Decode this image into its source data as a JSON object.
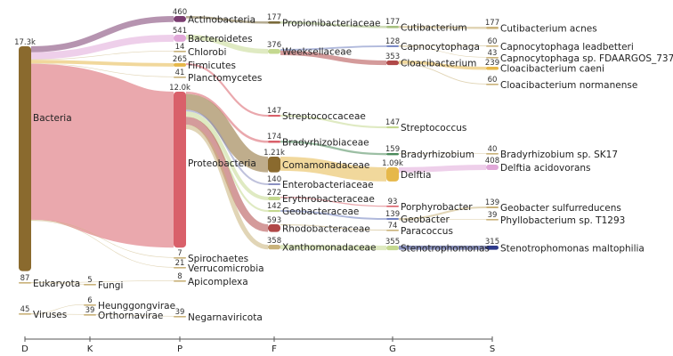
{
  "chart_data": {
    "type": "sankey",
    "title": "",
    "ranks": [
      "D",
      "K",
      "P",
      "F",
      "G",
      "S"
    ],
    "nodes": [
      {
        "id": "bacteria",
        "label": "Bacteria",
        "rank": "D",
        "count": 17300,
        "count_label": "17.3k",
        "color": "#8a6a2e"
      },
      {
        "id": "eukaryota",
        "label": "Eukaryota",
        "rank": "D",
        "count": 87,
        "count_label": "87",
        "color": "#c9b27a"
      },
      {
        "id": "viruses",
        "label": "Viruses",
        "rank": "D",
        "count": 45,
        "count_label": "45",
        "color": "#c9b27a"
      },
      {
        "id": "fungi",
        "label": "Fungi",
        "rank": "K",
        "count": 5,
        "count_label": "5",
        "color": "#c9b27a"
      },
      {
        "id": "heunggongvirae",
        "label": "Heunggongvirae",
        "rank": "K",
        "count": 6,
        "count_label": "6",
        "color": "#c9b27a"
      },
      {
        "id": "orthornavirae",
        "label": "Orthornavirae",
        "rank": "K",
        "count": 39,
        "count_label": "39",
        "color": "#c9b27a"
      },
      {
        "id": "actinobacteria",
        "label": "Actinobacteria",
        "rank": "P",
        "count": 460,
        "count_label": "460",
        "color": "#7a3d70"
      },
      {
        "id": "bacteroidetes",
        "label": "Bacteroidetes",
        "rank": "P",
        "count": 541,
        "count_label": "541",
        "color": "#e0a8d8"
      },
      {
        "id": "chlorobi",
        "label": "Chlorobi",
        "rank": "P",
        "count": 14,
        "count_label": "14",
        "color": "#c9b27a"
      },
      {
        "id": "firmicutes",
        "label": "Firmicutes",
        "rank": "P",
        "count": 265,
        "count_label": "265",
        "color": "#e6b84a"
      },
      {
        "id": "planctomycetes",
        "label": "Planctomycetes",
        "rank": "P",
        "count": 41,
        "count_label": "41",
        "color": "#c9b27a"
      },
      {
        "id": "proteobacteria",
        "label": "Proteobacteria",
        "rank": "P",
        "count": 12000,
        "count_label": "12.0k",
        "color": "#d9606a"
      },
      {
        "id": "spirochaetes",
        "label": "Spirochaetes",
        "rank": "P",
        "count": 7,
        "count_label": "7",
        "color": "#c9b27a"
      },
      {
        "id": "verrucomicrobia",
        "label": "Verrucomicrobia",
        "rank": "P",
        "count": 21,
        "count_label": "21",
        "color": "#c9b27a"
      },
      {
        "id": "apicomplexa",
        "label": "Apicomplexa",
        "rank": "P",
        "count": 8,
        "count_label": "8",
        "color": "#c9b27a"
      },
      {
        "id": "negarnaviricota",
        "label": "Negarnaviricota",
        "rank": "P",
        "count": 39,
        "count_label": "39",
        "color": "#c9b27a"
      },
      {
        "id": "propionibacteriaceae",
        "label": "Propionibacteriaceae",
        "rank": "F",
        "count": 177,
        "count_label": "177",
        "color": "#7a6a3a"
      },
      {
        "id": "weeksellaceae",
        "label": "Weeksellaceae",
        "rank": "F",
        "count": 376,
        "count_label": "376",
        "color": "#c4d890"
      },
      {
        "id": "streptococcaceae",
        "label": "Streptococcaceae",
        "rank": "F",
        "count": 147,
        "count_label": "147",
        "color": "#d9606a"
      },
      {
        "id": "bradyrhizobiaceae",
        "label": "Bradyrhizobiaceae",
        "rank": "F",
        "count": 174,
        "count_label": "174",
        "color": "#d9606a"
      },
      {
        "id": "comamonadaceae",
        "label": "Comamonadaceae",
        "rank": "F",
        "count": 1210,
        "count_label": "1.21k",
        "color": "#8a6a2e"
      },
      {
        "id": "enterobacteriaceae",
        "label": "Enterobacteriaceae",
        "rank": "F",
        "count": 140,
        "count_label": "140",
        "color": "#8a90c0"
      },
      {
        "id": "erythrobacteraceae",
        "label": "Erythrobacteraceae",
        "rank": "F",
        "count": 272,
        "count_label": "272",
        "color": "#c4d890"
      },
      {
        "id": "geobacteraceae",
        "label": "Geobacteraceae",
        "rank": "F",
        "count": 142,
        "count_label": "142",
        "color": "#c4d890"
      },
      {
        "id": "rhodobacteraceae",
        "label": "Rhodobacteraceae",
        "rank": "F",
        "count": 593,
        "count_label": "593",
        "color": "#b04848"
      },
      {
        "id": "xanthomonadaceae",
        "label": "Xanthomonadaceae",
        "rank": "F",
        "count": 358,
        "count_label": "358",
        "color": "#c9b27a"
      },
      {
        "id": "cutibacterium",
        "label": "Cutibacterium",
        "rank": "G",
        "count": 177,
        "count_label": "177",
        "color": "#a8c080"
      },
      {
        "id": "capnocytophaga",
        "label": "Capnocytophaga",
        "rank": "G",
        "count": 128,
        "count_label": "128",
        "color": "#7080c0"
      },
      {
        "id": "cloacibacterium",
        "label": "Cloacibacterium",
        "rank": "G",
        "count": 353,
        "count_label": "353",
        "color": "#b04848"
      },
      {
        "id": "streptococcus",
        "label": "Streptococcus",
        "rank": "G",
        "count": 147,
        "count_label": "147",
        "color": "#c4d890"
      },
      {
        "id": "bradyrhizobium",
        "label": "Bradyrhizobium",
        "rank": "G",
        "count": 159,
        "count_label": "159",
        "color": "#4a8a5a"
      },
      {
        "id": "delftia",
        "label": "Delftia",
        "rank": "G",
        "count": 1090,
        "count_label": "1.09k",
        "color": "#e6b84a"
      },
      {
        "id": "porphyrobacter",
        "label": "Porphyrobacter",
        "rank": "G",
        "count": 93,
        "count_label": "93",
        "color": "#d9606a"
      },
      {
        "id": "geobacter",
        "label": "Geobacter",
        "rank": "G",
        "count": 139,
        "count_label": "139",
        "color": "#7080c0"
      },
      {
        "id": "paracoccus",
        "label": "Paracoccus",
        "rank": "G",
        "count": 74,
        "count_label": "74",
        "color": "#c9b27a"
      },
      {
        "id": "stenotrophomonas",
        "label": "Stenotrophomonas",
        "rank": "G",
        "count": 355,
        "count_label": "355",
        "color": "#c4d890"
      },
      {
        "id": "cutibacterium_acnes",
        "label": "Cutibacterium acnes",
        "rank": "S",
        "count": 177,
        "count_label": "177",
        "color": "#c9b27a"
      },
      {
        "id": "capnocytophaga_leadbetteri",
        "label": "Capnocytophaga leadbetteri",
        "rank": "S",
        "count": 60,
        "count_label": "60",
        "color": "#c9b27a"
      },
      {
        "id": "capnocytophaga_fdaargos",
        "label": "Capnocytophaga sp. FDAARGOS_737",
        "rank": "S",
        "count": 43,
        "count_label": "43",
        "color": "#c9b27a"
      },
      {
        "id": "cloacibacterium_caeni",
        "label": "Cloacibacterium caeni",
        "rank": "S",
        "count": 239,
        "count_label": "239",
        "color": "#e6b84a"
      },
      {
        "id": "cloacibacterium_normanense",
        "label": "Cloacibacterium normanense",
        "rank": "S",
        "count": 60,
        "count_label": "60",
        "color": "#c9b27a"
      },
      {
        "id": "bradyrhizobium_sk17",
        "label": "Bradyrhizobium sp. SK17",
        "rank": "S",
        "count": 40,
        "count_label": "40",
        "color": "#c9b27a"
      },
      {
        "id": "delftia_acidovorans",
        "label": "Delftia acidovorans",
        "rank": "S",
        "count": 408,
        "count_label": "408",
        "color": "#e0a8d8"
      },
      {
        "id": "geobacter_sulfurreducens",
        "label": "Geobacter sulfurreducens",
        "rank": "S",
        "count": 139,
        "count_label": "139",
        "color": "#c9b27a"
      },
      {
        "id": "phyllobacterium_t1293",
        "label": "Phyllobacterium sp. T1293",
        "rank": "S",
        "count": 39,
        "count_label": "39",
        "color": "#c9b27a"
      },
      {
        "id": "stenotrophomonas_maltophilia",
        "label": "Stenotrophomonas maltophilia",
        "rank": "S",
        "count": 315,
        "count_label": "315",
        "color": "#2e3a8a"
      }
    ],
    "links": [
      {
        "source": "bacteria",
        "target": "actinobacteria",
        "value": 460
      },
      {
        "source": "bacteria",
        "target": "bacteroidetes",
        "value": 541
      },
      {
        "source": "bacteria",
        "target": "chlorobi",
        "value": 14
      },
      {
        "source": "bacteria",
        "target": "firmicutes",
        "value": 265
      },
      {
        "source": "bacteria",
        "target": "planctomycetes",
        "value": 41
      },
      {
        "source": "bacteria",
        "target": "proteobacteria",
        "value": 12000
      },
      {
        "source": "bacteria",
        "target": "spirochaetes",
        "value": 7
      },
      {
        "source": "bacteria",
        "target": "verrucomicrobia",
        "value": 21
      },
      {
        "source": "eukaryota",
        "target": "fungi",
        "value": 5
      },
      {
        "source": "eukaryota",
        "target": "apicomplexa",
        "value": 8
      },
      {
        "source": "viruses",
        "target": "heunggongvirae",
        "value": 6
      },
      {
        "source": "viruses",
        "target": "orthornavirae",
        "value": 39
      },
      {
        "source": "orthornavirae",
        "target": "negarnaviricota",
        "value": 39
      },
      {
        "source": "actinobacteria",
        "target": "propionibacteriaceae",
        "value": 177
      },
      {
        "source": "bacteroidetes",
        "target": "weeksellaceae",
        "value": 376
      },
      {
        "source": "firmicutes",
        "target": "streptococcaceae",
        "value": 147
      },
      {
        "source": "proteobacteria",
        "target": "bradyrhizobiaceae",
        "value": 174
      },
      {
        "source": "proteobacteria",
        "target": "comamonadaceae",
        "value": 1210
      },
      {
        "source": "proteobacteria",
        "target": "enterobacteriaceae",
        "value": 140
      },
      {
        "source": "proteobacteria",
        "target": "erythrobacteraceae",
        "value": 272
      },
      {
        "source": "proteobacteria",
        "target": "geobacteraceae",
        "value": 142
      },
      {
        "source": "proteobacteria",
        "target": "rhodobacteraceae",
        "value": 593
      },
      {
        "source": "proteobacteria",
        "target": "xanthomonadaceae",
        "value": 358
      },
      {
        "source": "propionibacteriaceae",
        "target": "cutibacterium",
        "value": 177
      },
      {
        "source": "weeksellaceae",
        "target": "capnocytophaga",
        "value": 128
      },
      {
        "source": "weeksellaceae",
        "target": "cloacibacterium",
        "value": 353
      },
      {
        "source": "streptococcaceae",
        "target": "streptococcus",
        "value": 147
      },
      {
        "source": "bradyrhizobiaceae",
        "target": "bradyrhizobium",
        "value": 159
      },
      {
        "source": "comamonadaceae",
        "target": "delftia",
        "value": 1090
      },
      {
        "source": "erythrobacteraceae",
        "target": "porphyrobacter",
        "value": 93
      },
      {
        "source": "geobacteraceae",
        "target": "geobacter",
        "value": 139
      },
      {
        "source": "rhodobacteraceae",
        "target": "paracoccus",
        "value": 74
      },
      {
        "source": "xanthomonadaceae",
        "target": "stenotrophomonas",
        "value": 355
      },
      {
        "source": "cutibacterium",
        "target": "cutibacterium_acnes",
        "value": 177
      },
      {
        "source": "capnocytophaga",
        "target": "capnocytophaga_leadbetteri",
        "value": 60
      },
      {
        "source": "capnocytophaga",
        "target": "capnocytophaga_fdaargos",
        "value": 43
      },
      {
        "source": "cloacibacterium",
        "target": "cloacibacterium_caeni",
        "value": 239
      },
      {
        "source": "cloacibacterium",
        "target": "cloacibacterium_normanense",
        "value": 60
      },
      {
        "source": "bradyrhizobium",
        "target": "bradyrhizobium_sk17",
        "value": 40
      },
      {
        "source": "delftia",
        "target": "delftia_acidovorans",
        "value": 408
      },
      {
        "source": "geobacter",
        "target": "geobacter_sulfurreducens",
        "value": 139
      },
      {
        "source": "geobacter",
        "target": "phyllobacterium_t1293",
        "value": 39
      },
      {
        "source": "stenotrophomonas",
        "target": "stenotrophomonas_maltophilia",
        "value": 315
      }
    ]
  }
}
